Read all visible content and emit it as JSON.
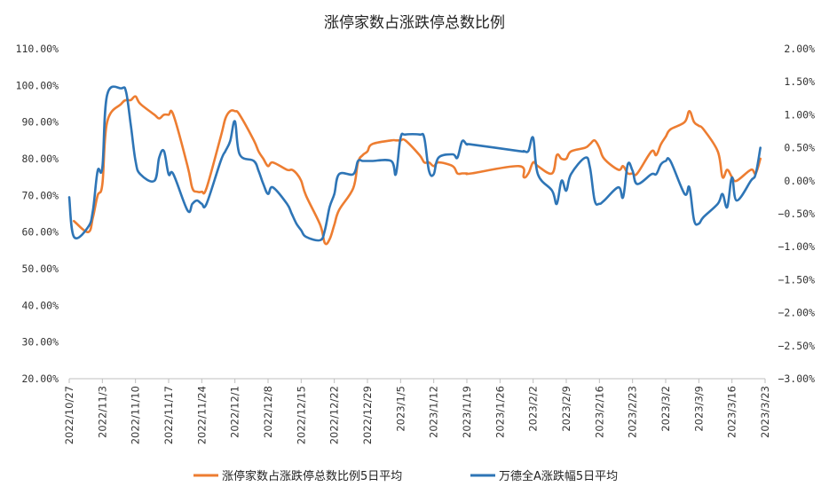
{
  "chart_data": {
    "type": "line",
    "title": "涨停家数占涨跌停总数比例",
    "left_axis": {
      "ylim": [
        20,
        110
      ],
      "ticks": [
        "20.00%",
        "30.00%",
        "40.00%",
        "50.00%",
        "60.00%",
        "70.00%",
        "80.00%",
        "90.00%",
        "100.00%",
        "110.00%"
      ]
    },
    "right_axis": {
      "ylim": [
        -3.0,
        2.0
      ],
      "ticks": [
        "−3.00%",
        "−2.50%",
        "−2.00%",
        "−1.50%",
        "−1.00%",
        "−0.50%",
        "0.00%",
        "0.50%",
        "1.00%",
        "1.50%",
        "2.00%"
      ]
    },
    "x_ticks": [
      "2022/10/27",
      "2022/11/3",
      "2022/11/10",
      "2022/11/17",
      "2022/11/24",
      "2022/12/1",
      "2022/12/8",
      "2022/12/15",
      "2022/12/22",
      "2022/12/29",
      "2023/1/5",
      "2023/1/12",
      "2023/1/19",
      "2023/1/26",
      "2023/2/2",
      "2023/2/9",
      "2023/2/16",
      "2023/2/23",
      "2023/3/2",
      "2023/3/9",
      "2023/3/16",
      "2023/3/23"
    ],
    "x_start": "2022-10-27",
    "grid": false,
    "legend_position": "bottom",
    "series": [
      {
        "name": "涨停家数占涨跌停总数比例5日平均",
        "axis": "left",
        "color": "#ED7D31",
        "points": [
          [
            "2022-10-28",
            63
          ],
          [
            "2022-10-31",
            60
          ],
          [
            "2022-11-01",
            64
          ],
          [
            "2022-11-02",
            70
          ],
          [
            "2022-11-03",
            73
          ],
          [
            "2022-11-04",
            90
          ],
          [
            "2022-11-07",
            95
          ],
          [
            "2022-11-08",
            96
          ],
          [
            "2022-11-09",
            96
          ],
          [
            "2022-11-10",
            97
          ],
          [
            "2022-11-11",
            95
          ],
          [
            "2022-11-14",
            92
          ],
          [
            "2022-11-15",
            91
          ],
          [
            "2022-11-16",
            92
          ],
          [
            "2022-11-17",
            92
          ],
          [
            "2022-11-18",
            92
          ],
          [
            "2022-11-21",
            78
          ],
          [
            "2022-11-22",
            72
          ],
          [
            "2022-11-23",
            71
          ],
          [
            "2022-11-24",
            71
          ],
          [
            "2022-11-25",
            72
          ],
          [
            "2022-11-28",
            86
          ],
          [
            "2022-11-29",
            91
          ],
          [
            "2022-11-30",
            93
          ],
          [
            "2022-12-01",
            93
          ],
          [
            "2022-12-02",
            92
          ],
          [
            "2022-12-05",
            85
          ],
          [
            "2022-12-06",
            82
          ],
          [
            "2022-12-07",
            80
          ],
          [
            "2022-12-08",
            78
          ],
          [
            "2022-12-09",
            79
          ],
          [
            "2022-12-12",
            77
          ],
          [
            "2022-12-13",
            77
          ],
          [
            "2022-12-14",
            76
          ],
          [
            "2022-12-15",
            74
          ],
          [
            "2022-12-16",
            70
          ],
          [
            "2022-12-19",
            62
          ],
          [
            "2022-12-20",
            57
          ],
          [
            "2022-12-21",
            58
          ],
          [
            "2022-12-22",
            62
          ],
          [
            "2022-12-23",
            66
          ],
          [
            "2022-12-26",
            72
          ],
          [
            "2022-12-27",
            79
          ],
          [
            "2022-12-28",
            81
          ],
          [
            "2022-12-29",
            82
          ],
          [
            "2022-12-30",
            84
          ],
          [
            "2023-01-03",
            85
          ],
          [
            "2023-01-04",
            85
          ],
          [
            "2023-01-05",
            85
          ],
          [
            "2023-01-06",
            85
          ],
          [
            "2023-01-09",
            81
          ],
          [
            "2023-01-10",
            79
          ],
          [
            "2023-01-11",
            79
          ],
          [
            "2023-01-12",
            78
          ],
          [
            "2023-01-13",
            79
          ],
          [
            "2023-01-16",
            78
          ],
          [
            "2023-01-17",
            76
          ],
          [
            "2023-01-18",
            76
          ],
          [
            "2023-01-19",
            76
          ],
          [
            "2023-01-20",
            76
          ],
          [
            "2023-01-30",
            78
          ],
          [
            "2023-01-31",
            75
          ],
          [
            "2023-02-01",
            76
          ],
          [
            "2023-02-02",
            79
          ],
          [
            "2023-02-03",
            78
          ],
          [
            "2023-02-06",
            76
          ],
          [
            "2023-02-07",
            81
          ],
          [
            "2023-02-08",
            80
          ],
          [
            "2023-02-09",
            80
          ],
          [
            "2023-02-10",
            82
          ],
          [
            "2023-02-13",
            83
          ],
          [
            "2023-02-14",
            84
          ],
          [
            "2023-02-15",
            85
          ],
          [
            "2023-02-16",
            83
          ],
          [
            "2023-02-17",
            80
          ],
          [
            "2023-02-20",
            77
          ],
          [
            "2023-02-21",
            78
          ],
          [
            "2023-02-22",
            76
          ],
          [
            "2023-02-23",
            76
          ],
          [
            "2023-02-24",
            76
          ],
          [
            "2023-02-27",
            82
          ],
          [
            "2023-02-28",
            81
          ],
          [
            "2023-03-01",
            84
          ],
          [
            "2023-03-02",
            86
          ],
          [
            "2023-03-03",
            88
          ],
          [
            "2023-03-06",
            90
          ],
          [
            "2023-03-07",
            93
          ],
          [
            "2023-03-08",
            90
          ],
          [
            "2023-03-09",
            89
          ],
          [
            "2023-03-10",
            88
          ],
          [
            "2023-03-13",
            82
          ],
          [
            "2023-03-14",
            75
          ],
          [
            "2023-03-15",
            77
          ],
          [
            "2023-03-16",
            75
          ],
          [
            "2023-03-17",
            74
          ],
          [
            "2023-03-20",
            77
          ],
          [
            "2023-03-21",
            76
          ],
          [
            "2023-03-22",
            80
          ]
        ]
      },
      {
        "name": "万德全A涨跌幅5日平均",
        "axis": "right",
        "color": "#2E75B6",
        "points": [
          [
            "2022-10-27",
            -0.25
          ],
          [
            "2022-10-28",
            -0.85
          ],
          [
            "2022-10-31",
            -0.7
          ],
          [
            "2022-11-01",
            -0.45
          ],
          [
            "2022-11-02",
            0.15
          ],
          [
            "2022-11-03",
            0.2
          ],
          [
            "2022-11-04",
            1.3
          ],
          [
            "2022-11-07",
            1.4
          ],
          [
            "2022-11-08",
            1.35
          ],
          [
            "2022-11-09",
            0.85
          ],
          [
            "2022-11-10",
            0.3
          ],
          [
            "2022-11-11",
            0.1
          ],
          [
            "2022-11-14",
            0.0
          ],
          [
            "2022-11-15",
            0.35
          ],
          [
            "2022-11-16",
            0.45
          ],
          [
            "2022-11-17",
            0.1
          ],
          [
            "2022-11-18",
            0.1
          ],
          [
            "2022-11-21",
            -0.45
          ],
          [
            "2022-11-22",
            -0.35
          ],
          [
            "2022-11-23",
            -0.3
          ],
          [
            "2022-11-24",
            -0.35
          ],
          [
            "2022-11-25",
            -0.35
          ],
          [
            "2022-11-28",
            0.3
          ],
          [
            "2022-11-29",
            0.45
          ],
          [
            "2022-11-30",
            0.6
          ],
          [
            "2022-12-01",
            0.9
          ],
          [
            "2022-12-02",
            0.4
          ],
          [
            "2022-12-05",
            0.3
          ],
          [
            "2022-12-06",
            0.15
          ],
          [
            "2022-12-07",
            -0.05
          ],
          [
            "2022-12-08",
            -0.2
          ],
          [
            "2022-12-09",
            -0.1
          ],
          [
            "2022-12-12",
            -0.35
          ],
          [
            "2022-12-13",
            -0.5
          ],
          [
            "2022-12-14",
            -0.65
          ],
          [
            "2022-12-15",
            -0.75
          ],
          [
            "2022-12-16",
            -0.85
          ],
          [
            "2022-12-19",
            -0.9
          ],
          [
            "2022-12-20",
            -0.75
          ],
          [
            "2022-12-21",
            -0.4
          ],
          [
            "2022-12-22",
            -0.2
          ],
          [
            "2022-12-23",
            0.1
          ],
          [
            "2022-12-26",
            0.1
          ],
          [
            "2022-12-27",
            0.3
          ],
          [
            "2022-12-28",
            0.3
          ],
          [
            "2022-12-29",
            0.3
          ],
          [
            "2022-12-30",
            0.3
          ],
          [
            "2023-01-03",
            0.3
          ],
          [
            "2023-01-04",
            0.1
          ],
          [
            "2023-01-05",
            0.65
          ],
          [
            "2023-01-06",
            0.7
          ],
          [
            "2023-01-09",
            0.7
          ],
          [
            "2023-01-10",
            0.65
          ],
          [
            "2023-01-11",
            0.15
          ],
          [
            "2023-01-12",
            0.1
          ],
          [
            "2023-01-13",
            0.35
          ],
          [
            "2023-01-16",
            0.4
          ],
          [
            "2023-01-17",
            0.35
          ],
          [
            "2023-01-18",
            0.6
          ],
          [
            "2023-01-19",
            0.55
          ],
          [
            "2023-01-20",
            0.55
          ],
          [
            "2023-01-30",
            0.45
          ],
          [
            "2023-01-31",
            0.45
          ],
          [
            "2023-02-01",
            0.45
          ],
          [
            "2023-02-02",
            0.65
          ],
          [
            "2023-02-03",
            0.1
          ],
          [
            "2023-02-06",
            -0.15
          ],
          [
            "2023-02-07",
            -0.35
          ],
          [
            "2023-02-08",
            0.0
          ],
          [
            "2023-02-09",
            -0.15
          ],
          [
            "2023-02-10",
            0.1
          ],
          [
            "2023-02-13",
            0.35
          ],
          [
            "2023-02-14",
            0.2
          ],
          [
            "2023-02-15",
            -0.3
          ],
          [
            "2023-02-16",
            -0.35
          ],
          [
            "2023-02-17",
            -0.3
          ],
          [
            "2023-02-20",
            -0.1
          ],
          [
            "2023-02-21",
            -0.25
          ],
          [
            "2023-02-22",
            0.25
          ],
          [
            "2023-02-23",
            0.15
          ],
          [
            "2023-02-24",
            -0.05
          ],
          [
            "2023-02-27",
            0.1
          ],
          [
            "2023-02-28",
            0.1
          ],
          [
            "2023-03-01",
            0.25
          ],
          [
            "2023-03-02",
            0.3
          ],
          [
            "2023-03-03",
            0.3
          ],
          [
            "2023-03-06",
            -0.2
          ],
          [
            "2023-03-07",
            -0.1
          ],
          [
            "2023-03-08",
            -0.6
          ],
          [
            "2023-03-09",
            -0.65
          ],
          [
            "2023-03-10",
            -0.55
          ],
          [
            "2023-03-13",
            -0.35
          ],
          [
            "2023-03-14",
            -0.2
          ],
          [
            "2023-03-15",
            -0.4
          ],
          [
            "2023-03-16",
            0.05
          ],
          [
            "2023-03-17",
            -0.3
          ],
          [
            "2023-03-20",
            0.0
          ],
          [
            "2023-03-21",
            0.1
          ],
          [
            "2023-03-22",
            0.5
          ]
        ]
      }
    ]
  }
}
